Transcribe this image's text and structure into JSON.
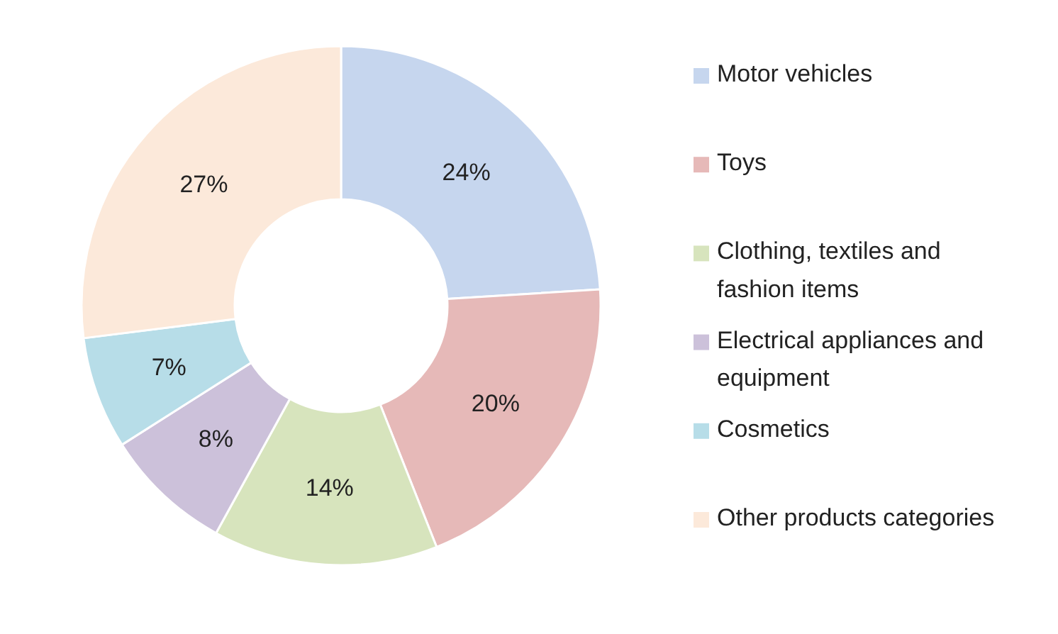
{
  "chart_data": {
    "type": "donut",
    "categories": [
      "Motor vehicles",
      "Toys",
      "Clothing, textiles and fashion items",
      "Electrical appliances and equipment",
      "Cosmetics",
      "Other products categories"
    ],
    "values": [
      24,
      20,
      14,
      8,
      7,
      27
    ],
    "value_labels": [
      "24%",
      "20%",
      "14%",
      "8%",
      "7%",
      "27%"
    ],
    "colors": [
      "#c6d6ee",
      "#e6b9b8",
      "#d7e4bd",
      "#ccc1da",
      "#b7dde8",
      "#fce9da"
    ],
    "legend": "right"
  }
}
